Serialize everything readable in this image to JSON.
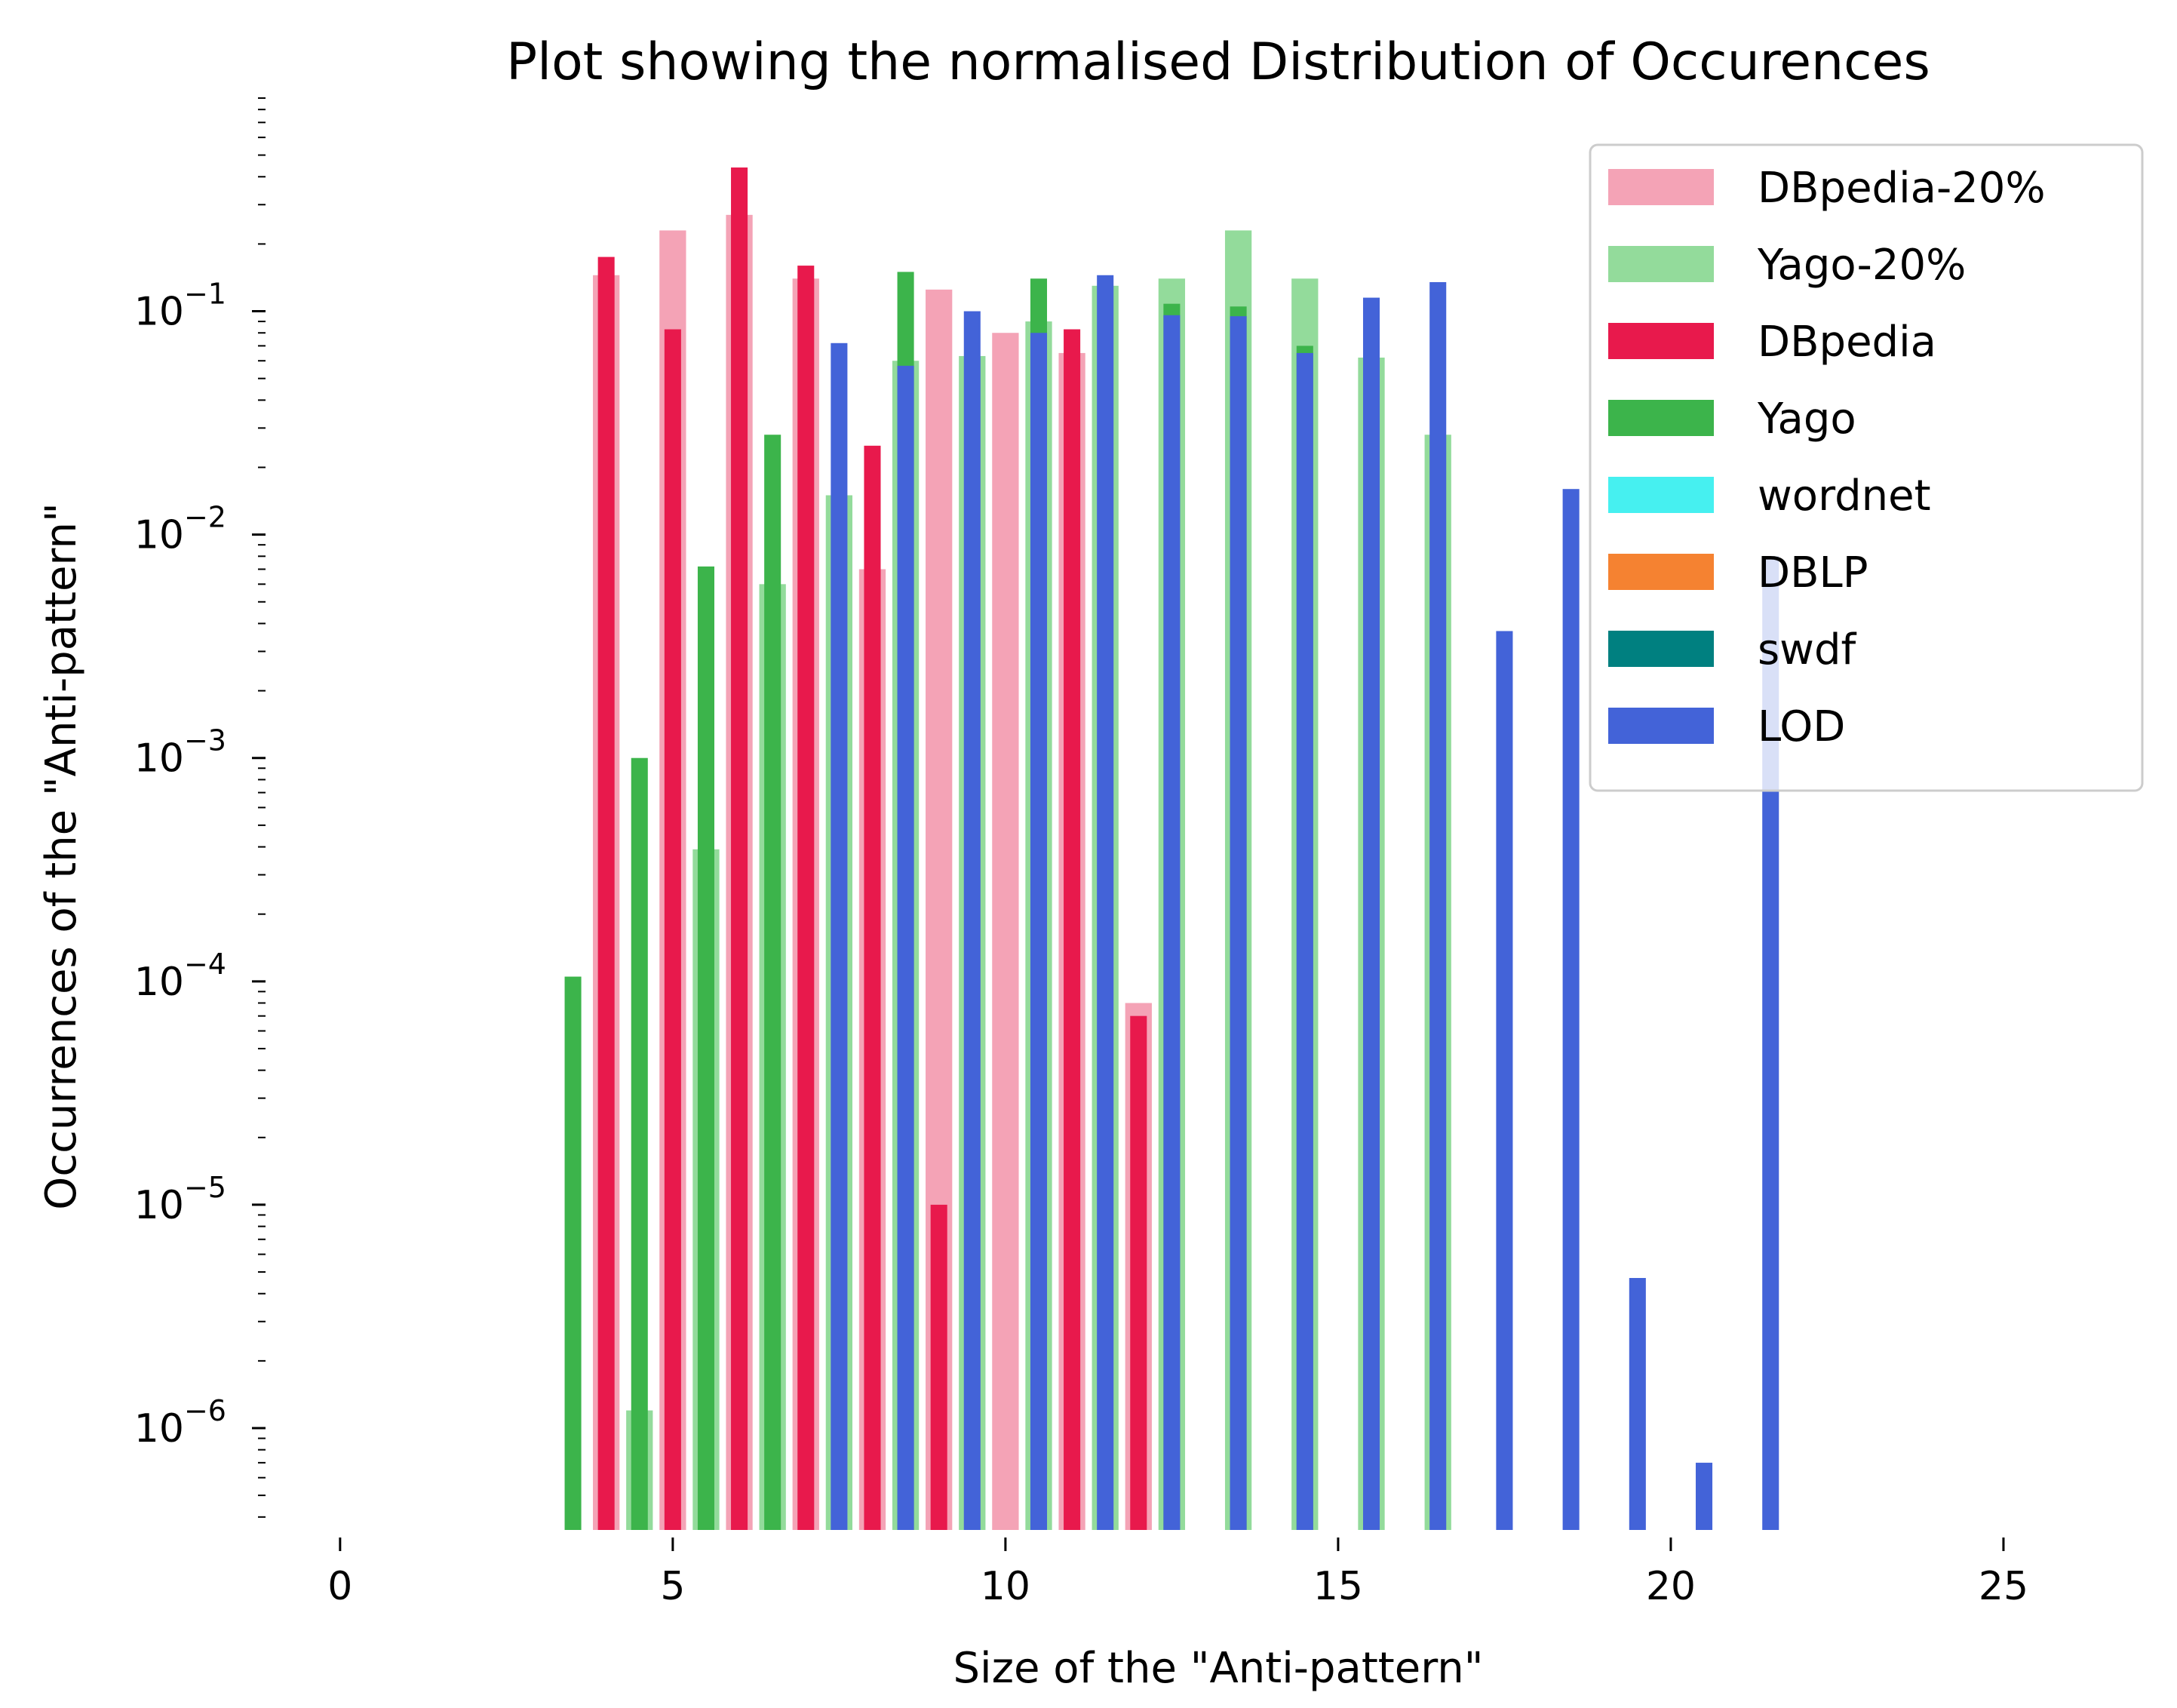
{
  "chart_data": {
    "type": "bar",
    "title": "Plot showing the normalised Distribution of Occurences",
    "xlabel": "Size of the \"Anti-pattern\"",
    "ylabel": "Occurrences of the \"Anti-pattern\"",
    "xlim": [
      -1.2,
      27.2
    ],
    "ylim": [
      3.5e-07,
      0.9
    ],
    "yscale": "log",
    "grid": false,
    "legend_position": "top-right",
    "x_ticks": [
      0,
      5,
      10,
      15,
      20,
      25
    ],
    "y_ticks": [
      {
        "base": "10",
        "exp": "−6",
        "value": 1e-06
      },
      {
        "base": "10",
        "exp": "−5",
        "value": 1e-05
      },
      {
        "base": "10",
        "exp": "−4",
        "value": 0.0001
      },
      {
        "base": "10",
        "exp": "−3",
        "value": 0.001
      },
      {
        "base": "10",
        "exp": "−2",
        "value": 0.01
      },
      {
        "base": "10",
        "exp": "−1",
        "value": 0.1
      }
    ],
    "series": [
      {
        "name": "DBpedia-20%",
        "color": "#f4a3b6",
        "bar_width": 0.4,
        "points": [
          [
            4,
            0.145
          ],
          [
            5,
            0.23
          ],
          [
            6,
            0.27
          ],
          [
            7,
            0.14
          ],
          [
            8,
            0.007
          ],
          [
            9,
            0.125
          ],
          [
            10,
            0.08
          ],
          [
            11,
            0.065
          ],
          [
            12,
            8e-05
          ]
        ]
      },
      {
        "name": "Yago-20%",
        "color": "#93db9b",
        "bar_width": 0.4,
        "points": [
          [
            4.5,
            1.2e-06
          ],
          [
            5.5,
            0.00039
          ],
          [
            6.5,
            0.006
          ],
          [
            7.5,
            0.015
          ],
          [
            8.5,
            0.06
          ],
          [
            9.5,
            0.063
          ],
          [
            10.5,
            0.09
          ],
          [
            11.5,
            0.13
          ],
          [
            12.5,
            0.14
          ],
          [
            13.5,
            0.23
          ],
          [
            14.5,
            0.14
          ],
          [
            15.5,
            0.062
          ],
          [
            16.5,
            0.028
          ]
        ]
      },
      {
        "name": "DBpedia",
        "color": "#e8194c",
        "bar_width": 0.25,
        "points": [
          [
            4,
            0.175
          ],
          [
            5,
            0.083
          ],
          [
            6,
            0.44
          ],
          [
            7,
            0.16
          ],
          [
            8,
            0.025
          ],
          [
            9,
            1e-05
          ],
          [
            11,
            0.083
          ],
          [
            12,
            7e-05
          ]
        ]
      },
      {
        "name": "Yago",
        "color": "#3cb44b",
        "bar_width": 0.25,
        "points": [
          [
            3.5,
            0.000105
          ],
          [
            4.5,
            0.001
          ],
          [
            5.5,
            0.0072
          ],
          [
            6.5,
            0.028
          ],
          [
            8.5,
            0.15
          ],
          [
            10.5,
            0.14
          ],
          [
            12.5,
            0.108
          ],
          [
            13.5,
            0.105
          ],
          [
            14.5,
            0.07
          ]
        ]
      },
      {
        "name": "wordnet",
        "color": "#46f0f0",
        "bar_width": 0.25,
        "points": []
      },
      {
        "name": "DBLP",
        "color": "#f58231",
        "bar_width": 0.25,
        "points": []
      },
      {
        "name": "swdf",
        "color": "#008080",
        "bar_width": 0.25,
        "points": []
      },
      {
        "name": "LOD",
        "color": "#4363d8",
        "bar_width": 0.25,
        "points": [
          [
            7.5,
            0.072
          ],
          [
            8.5,
            0.057
          ],
          [
            9.5,
            0.1
          ],
          [
            10.5,
            0.08
          ],
          [
            11.5,
            0.145
          ],
          [
            12.5,
            0.096
          ],
          [
            13.5,
            0.095
          ],
          [
            14.5,
            0.065
          ],
          [
            15.5,
            0.115
          ],
          [
            16.5,
            0.135
          ],
          [
            17.5,
            0.0037
          ],
          [
            18.5,
            0.016
          ],
          [
            19.5,
            4.7e-06
          ],
          [
            20.5,
            7e-07
          ],
          [
            21.5,
            0.008
          ]
        ]
      }
    ]
  }
}
